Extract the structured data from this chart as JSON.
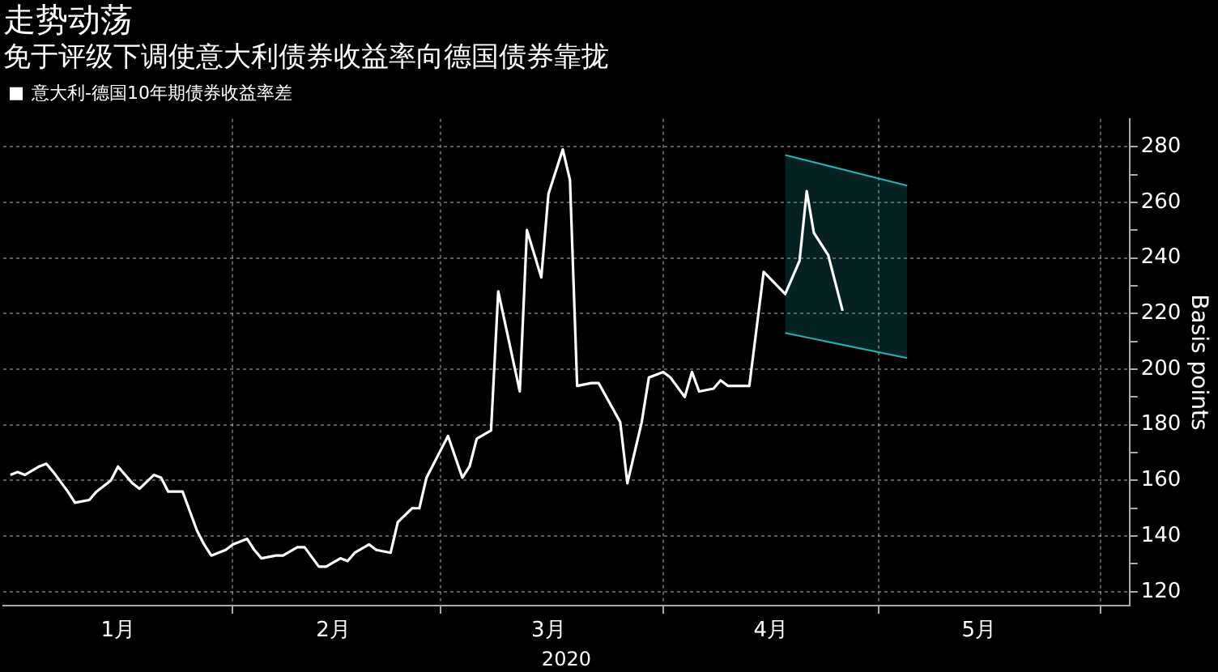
{
  "chart_data": {
    "type": "line",
    "title": "走势动荡",
    "subtitle": "免于评级下调使意大利债券收益率向德国债券靠拢",
    "xlabel": "2020",
    "ylabel": "Basis points",
    "legend": "top left",
    "grid": true,
    "marker": "none",
    "line_style": "solid",
    "xlim": [
      "2019-12-31",
      "2020-06-05"
    ],
    "xticks": [
      {
        "value": "2020-01-16",
        "label": "1月"
      },
      {
        "value": "2020-02-01",
        "label": null
      },
      {
        "value": "2020-02-15",
        "label": "2月"
      },
      {
        "value": "2020-03-01",
        "label": null
      },
      {
        "value": "2020-03-16",
        "label": "3月"
      },
      {
        "value": "2020-04-01",
        "label": null
      },
      {
        "value": "2020-04-16",
        "label": "4月"
      },
      {
        "value": "2020-05-01",
        "label": null
      },
      {
        "value": "2020-05-15",
        "label": "5月"
      },
      {
        "value": "2020-06-01",
        "label": null
      }
    ],
    "ylim": [
      115,
      290
    ],
    "yticks": [
      120,
      {
        "value": 130,
        "label": null
      },
      140,
      {
        "value": 150,
        "label": null
      },
      160,
      {
        "value": 170,
        "label": null
      },
      180,
      {
        "value": 190,
        "label": null
      },
      200,
      {
        "value": 210,
        "label": null
      },
      220,
      {
        "value": 230,
        "label": null
      },
      240,
      {
        "value": 250,
        "label": null
      },
      260,
      {
        "value": 270,
        "label": null
      },
      280
    ],
    "series": [
      {
        "name": "意大利-德国10年期债券收益率差",
        "color": "#ffffff",
        "x": [
          "2020-01-01",
          "2020-01-02",
          "2020-01-03",
          "2020-01-05",
          "2020-01-06",
          "2020-01-07",
          "2020-01-09",
          "2020-01-10",
          "2020-01-12",
          "2020-01-13",
          "2020-01-15",
          "2020-01-16",
          "2020-01-18",
          "2020-01-19",
          "2020-01-21",
          "2020-01-22",
          "2020-01-23",
          "2020-01-25",
          "2020-01-27",
          "2020-01-28",
          "2020-01-29",
          "2020-01-31",
          "2020-02-01",
          "2020-02-03",
          "2020-02-04",
          "2020-02-05",
          "2020-02-07",
          "2020-02-08",
          "2020-02-10",
          "2020-02-11",
          "2020-02-13",
          "2020-02-14",
          "2020-02-16",
          "2020-02-17",
          "2020-02-18",
          "2020-02-20",
          "2020-02-21",
          "2020-02-23",
          "2020-02-24",
          "2020-02-26",
          "2020-02-27",
          "2020-02-28",
          "2020-03-01",
          "2020-03-02",
          "2020-03-04",
          "2020-03-05",
          "2020-03-06",
          "2020-03-08",
          "2020-03-09",
          "2020-03-12",
          "2020-03-13",
          "2020-03-15",
          "2020-03-16",
          "2020-03-18",
          "2020-03-19",
          "2020-03-20",
          "2020-03-22",
          "2020-03-23",
          "2020-03-26",
          "2020-03-27",
          "2020-03-29",
          "2020-03-30",
          "2020-04-01",
          "2020-04-02",
          "2020-04-04",
          "2020-04-05",
          "2020-04-06",
          "2020-04-08",
          "2020-04-09",
          "2020-04-10",
          "2020-04-13",
          "2020-04-15",
          "2020-04-18",
          "2020-04-20",
          "2020-04-21",
          "2020-04-22",
          "2020-04-24",
          "2020-04-26"
        ],
        "values": [
          162,
          163,
          162,
          165,
          166,
          163,
          156,
          152,
          153,
          156,
          160,
          165,
          159,
          157,
          162,
          161,
          156,
          156,
          142,
          137,
          133,
          135,
          137,
          139,
          135,
          132,
          133,
          133,
          136,
          136,
          129,
          129,
          132,
          131,
          134,
          137,
          135,
          134,
          145,
          150,
          150,
          161,
          171,
          176,
          161,
          165,
          175,
          178,
          228,
          192,
          250,
          233,
          263,
          279,
          268,
          194,
          195,
          195,
          181,
          159,
          181,
          197,
          199,
          197,
          190,
          199,
          192,
          193,
          196,
          194,
          194,
          235,
          227,
          239,
          264,
          249,
          241,
          221
        ]
      },
      {
        "type": "area",
        "color": "#1fb5b5",
        "x": [
          "2020-04-18",
          "2020-05-05"
        ],
        "values": [
          277,
          266
        ]
      },
      {
        "color": "#1fb5b5",
        "x": [
          "2020-04-18",
          "2020-05-05"
        ],
        "values": [
          213,
          204
        ]
      }
    ]
  }
}
